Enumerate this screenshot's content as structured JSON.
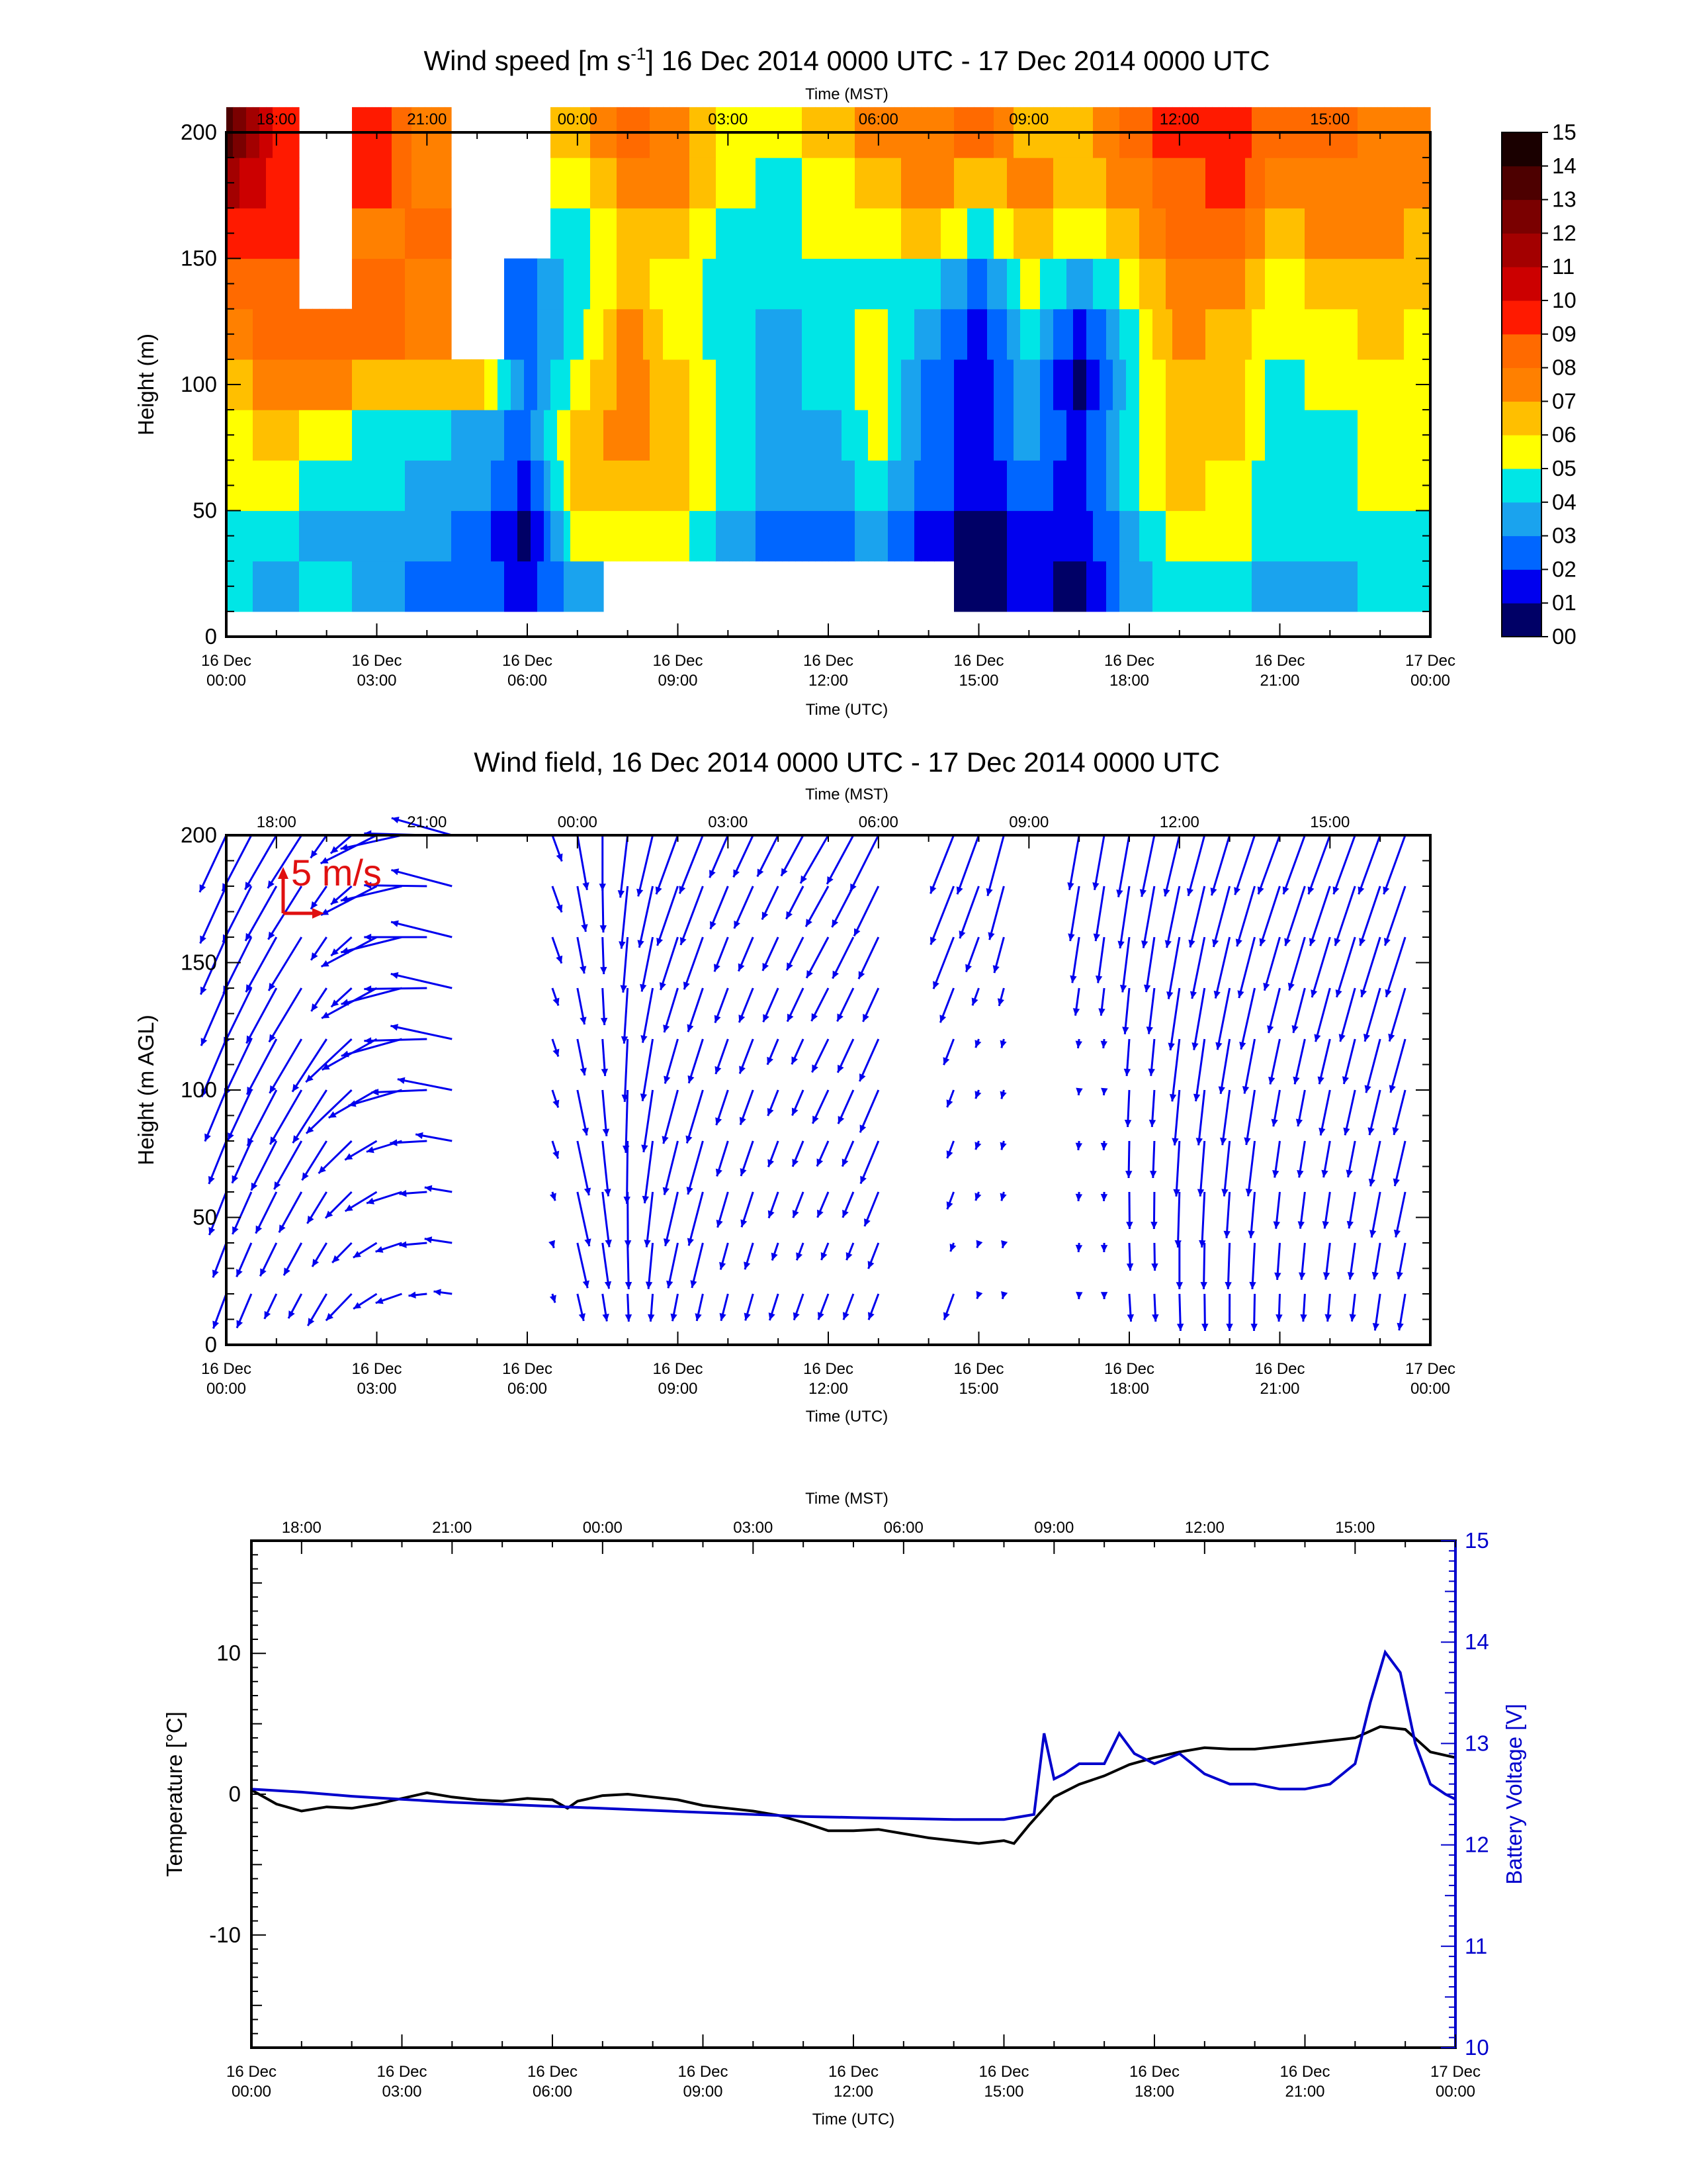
{
  "colors": {
    "wind_speed_scale": [
      "#000066",
      "#0000ee",
      "#0066ff",
      "#1aa3ee",
      "#00e6e6",
      "#ffff00",
      "#ffbf00",
      "#ff8000",
      "#ff6a00",
      "#ff1a00",
      "#cc0000",
      "#a30000",
      "#7a0000",
      "#4d0000",
      "#1a0000"
    ],
    "vector": "#0000ee",
    "scale_arrow": "#e01010",
    "temperature_line": "#000000",
    "battery_line": "#0000cc"
  },
  "shared_axes": {
    "utc_ticks": [
      {
        "l1": "16 Dec",
        "l2": "00:00"
      },
      {
        "l1": "16 Dec",
        "l2": "03:00"
      },
      {
        "l1": "16 Dec",
        "l2": "06:00"
      },
      {
        "l1": "16 Dec",
        "l2": "09:00"
      },
      {
        "l1": "16 Dec",
        "l2": "12:00"
      },
      {
        "l1": "16 Dec",
        "l2": "15:00"
      },
      {
        "l1": "16 Dec",
        "l2": "18:00"
      },
      {
        "l1": "16 Dec",
        "l2": "21:00"
      },
      {
        "l1": "17 Dec",
        "l2": "00:00"
      }
    ],
    "mst_ticks": [
      "18:00",
      "21:00",
      "00:00",
      "03:00",
      "06:00",
      "09:00",
      "12:00",
      "15:00"
    ]
  },
  "chart_data": [
    {
      "type": "heatmap",
      "title": "Wind speed [m s⁻¹] 16 Dec 2014 0000 UTC - 17 Dec 2014 0000 UTC",
      "xlabel": "Time (UTC)",
      "x2label": "Time (MST)",
      "ylabel": "Height (m)",
      "xlim_hours": [
        0,
        24
      ],
      "ylim": [
        0,
        200
      ],
      "yticks": [
        0,
        50,
        100,
        150,
        200
      ],
      "colorbar_levels": [
        "00",
        "01",
        "02",
        "03",
        "04",
        "05",
        "06",
        "07",
        "08",
        "09",
        "10",
        "11",
        "12",
        "13",
        "14",
        "15"
      ],
      "time_hours": [
        0,
        1,
        2,
        3,
        4,
        5,
        6,
        7,
        8,
        9,
        10,
        11,
        12,
        13,
        14,
        15,
        16,
        17,
        18,
        19,
        20,
        21,
        22,
        23,
        24
      ],
      "heights": [
        20,
        40,
        60,
        80,
        100,
        120,
        140,
        160,
        180,
        200
      ],
      "wind_speed": [
        [
          4,
          4,
          5,
          5,
          6,
          7,
          8,
          9,
          11,
          13
        ],
        [
          3,
          4,
          5,
          6,
          7,
          8,
          8,
          9,
          9,
          9
        ],
        [
          4,
          3,
          4,
          5,
          7,
          8,
          null,
          null,
          null,
          null
        ],
        [
          3,
          3,
          4,
          4,
          6,
          8,
          8,
          7,
          9,
          9
        ],
        [
          2,
          3,
          3,
          4,
          6,
          7,
          7,
          8,
          7,
          7
        ],
        [
          2,
          2,
          3,
          3,
          6,
          null,
          null,
          null,
          null,
          null
        ],
        [
          1,
          0,
          1,
          2,
          2,
          2,
          2,
          null,
          null,
          null
        ],
        [
          3,
          5,
          6,
          6,
          5,
          4,
          4,
          4,
          5,
          6
        ],
        [
          null,
          5,
          6,
          7,
          7,
          7,
          6,
          6,
          7,
          8
        ],
        [
          null,
          5,
          6,
          6,
          6,
          5,
          5,
          6,
          7,
          7
        ],
        [
          null,
          3,
          4,
          4,
          4,
          4,
          4,
          4,
          5,
          5
        ],
        [
          null,
          2,
          3,
          3,
          3,
          3,
          4,
          4,
          4,
          5
        ],
        [
          null,
          2,
          3,
          3,
          4,
          4,
          4,
          5,
          5,
          6
        ],
        [
          null,
          3,
          4,
          5,
          5,
          5,
          4,
          5,
          6,
          7
        ],
        [
          null,
          1,
          2,
          2,
          2,
          3,
          4,
          6,
          7,
          7
        ],
        [
          0,
          0,
          1,
          1,
          1,
          1,
          2,
          4,
          6,
          8
        ],
        [
          1,
          1,
          2,
          3,
          3,
          4,
          5,
          6,
          7,
          6
        ],
        [
          0,
          1,
          1,
          1,
          0,
          1,
          3,
          5,
          6,
          6
        ],
        [
          3,
          3,
          4,
          4,
          4,
          4,
          5,
          6,
          7,
          8
        ],
        [
          4,
          5,
          6,
          6,
          6,
          7,
          7,
          8,
          8,
          9
        ],
        [
          4,
          5,
          5,
          6,
          6,
          6,
          7,
          8,
          9,
          9
        ],
        [
          3,
          4,
          4,
          4,
          4,
          5,
          5,
          6,
          7,
          8
        ],
        [
          3,
          4,
          4,
          4,
          5,
          5,
          6,
          7,
          7,
          8
        ],
        [
          4,
          4,
          5,
          5,
          5,
          6,
          6,
          7,
          7,
          7
        ],
        [
          4,
          4,
          5,
          5,
          5,
          5,
          6,
          6,
          7,
          7
        ]
      ]
    },
    {
      "type": "scatter",
      "subtype": "vector-field",
      "title": "Wind field, 16 Dec 2014 0000 UTC - 17 Dec 2014 0000 UTC",
      "xlabel": "Time (UTC)",
      "x2label": "Time (MST)",
      "ylabel": "Height (m AGL)",
      "ylim": [
        0,
        200
      ],
      "yticks": [
        0,
        50,
        100,
        150,
        200
      ],
      "scale_label": "5 m/s",
      "scale_ms": 5,
      "heights": [
        20,
        40,
        60,
        80,
        100,
        120,
        140,
        160,
        180,
        200
      ],
      "times_hours": [
        0,
        0.5,
        1,
        1.5,
        2,
        2.5,
        3,
        3.5,
        4,
        4.5,
        5,
        5.5,
        6,
        6.5,
        7,
        7.5,
        8,
        8.5,
        9,
        9.5,
        10,
        10.5,
        11,
        11.5,
        12,
        12.5,
        13,
        13.5,
        14,
        14.5,
        15,
        15.5,
        16,
        16.5,
        17,
        17.5,
        18,
        18.5,
        19,
        19.5,
        20,
        20.5,
        21,
        21.5,
        22,
        22.5,
        23,
        23.5,
        24
      ],
      "gaps_hours": [
        [
          5.0,
          6.0
        ],
        [
          13.5,
          14.0
        ],
        [
          15.8,
          16.6
        ],
        [
          17.1,
          17.4
        ]
      ],
      "direction_profile_deg": [
        [
          0,
          200,
          205
        ],
        [
          2,
          210,
          215
        ],
        [
          5,
          290,
          300
        ],
        [
          6,
          160,
          150
        ],
        [
          7.5,
          170,
          180
        ],
        [
          9,
          190,
          200
        ],
        [
          12,
          200,
          210
        ],
        [
          15,
          200,
          200
        ],
        [
          16,
          190,
          190
        ],
        [
          18,
          175,
          190
        ],
        [
          21,
          180,
          200
        ],
        [
          24,
          190,
          200
        ]
      ]
    },
    {
      "type": "line",
      "xlabel": "Time (UTC)",
      "x2label": "Time (MST)",
      "ylabel": "Temperature [°C]",
      "y2label": "Battery Voltage [V]",
      "ylim": [
        -18,
        18
      ],
      "yticks": [
        -10,
        0,
        10
      ],
      "y2lim": [
        10,
        15
      ],
      "y2ticks": [
        10,
        11,
        12,
        13,
        14,
        15
      ],
      "series": [
        {
          "name": "Temperature [°C]",
          "axis": "left",
          "x": [
            0,
            0.5,
            1,
            1.5,
            2,
            2.5,
            3,
            3.5,
            4,
            4.5,
            5,
            5.5,
            6,
            6.3,
            6.5,
            7,
            7.5,
            8,
            8.5,
            9,
            9.5,
            10,
            10.5,
            11,
            11.5,
            12,
            12.5,
            13,
            13.5,
            14,
            14.5,
            15,
            15.2,
            15.5,
            16,
            16.5,
            17,
            17.5,
            18,
            18.5,
            19,
            19.5,
            20,
            20.5,
            21,
            21.5,
            22,
            22.5,
            23,
            23.5,
            24
          ],
          "y": [
            0.3,
            -0.7,
            -1.2,
            -0.9,
            -1.0,
            -0.7,
            -0.3,
            0.1,
            -0.2,
            -0.4,
            -0.5,
            -0.3,
            -0.4,
            -1.0,
            -0.5,
            -0.1,
            0.0,
            -0.2,
            -0.4,
            -0.8,
            -1.0,
            -1.2,
            -1.5,
            -2.0,
            -2.6,
            -2.6,
            -2.5,
            -2.8,
            -3.1,
            -3.3,
            -3.5,
            -3.3,
            -3.5,
            -2.2,
            -0.2,
            0.7,
            1.3,
            2.1,
            2.6,
            3.0,
            3.3,
            3.2,
            3.2,
            3.4,
            3.6,
            3.8,
            4.0,
            4.8,
            4.6,
            3.0,
            2.6
          ]
        },
        {
          "name": "Battery Voltage [V]",
          "axis": "right",
          "x": [
            0,
            1,
            2,
            3,
            4,
            5,
            6,
            7,
            8,
            9,
            10,
            11,
            12,
            13,
            14,
            15,
            15.6,
            15.8,
            16,
            16.2,
            16.5,
            17,
            17.3,
            17.6,
            18,
            18.5,
            19,
            19.5,
            20,
            20.5,
            21,
            21.5,
            22,
            22.3,
            22.6,
            22.9,
            23.2,
            23.5,
            23.8,
            24
          ],
          "y": [
            12.55,
            12.52,
            12.48,
            12.45,
            12.42,
            12.4,
            12.38,
            12.36,
            12.34,
            12.32,
            12.3,
            12.28,
            12.27,
            12.26,
            12.25,
            12.25,
            12.3,
            13.1,
            12.65,
            12.7,
            12.8,
            12.8,
            13.1,
            12.9,
            12.8,
            12.9,
            12.7,
            12.6,
            12.6,
            12.55,
            12.55,
            12.6,
            12.8,
            13.4,
            13.9,
            13.7,
            13.0,
            12.6,
            12.5,
            12.45
          ]
        }
      ]
    }
  ]
}
